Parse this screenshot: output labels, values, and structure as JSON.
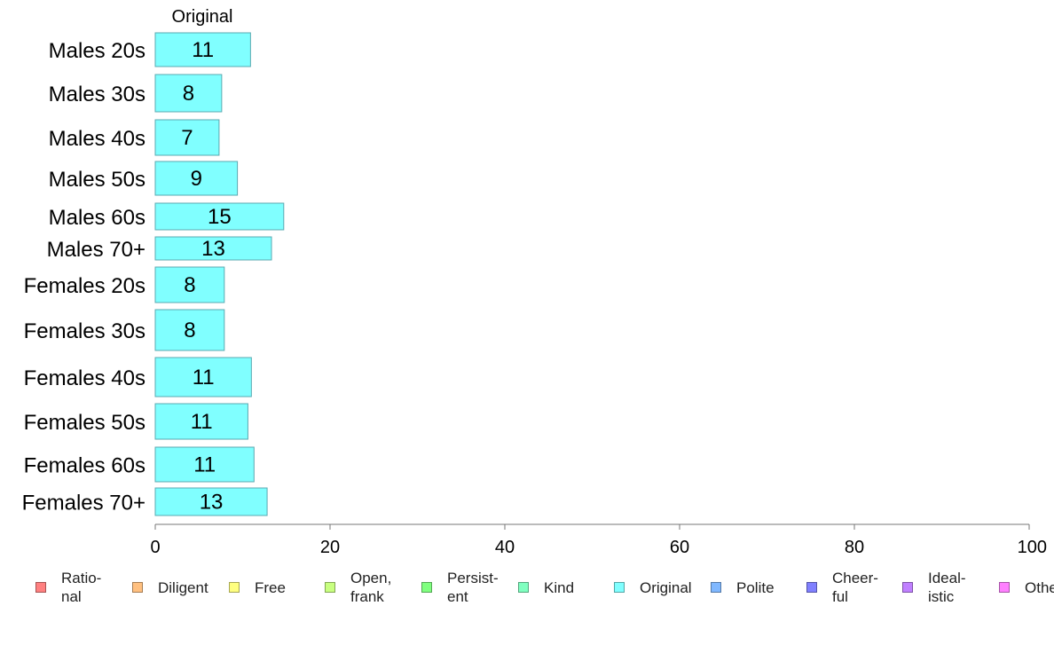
{
  "chart_data": {
    "type": "bar",
    "orientation": "horizontal",
    "panel_title": "Original",
    "categories": [
      "Males 20s",
      "Males 30s",
      "Males 40s",
      "Males 50s",
      "Males 60s",
      "Males 70+",
      "Females 20s",
      "Females 30s",
      "Females 40s",
      "Females 50s",
      "Females 60s",
      "Females 70+"
    ],
    "series": [
      {
        "name": "Original",
        "color": "#80ffff",
        "values": [
          10.9,
          7.6,
          7.3,
          9.4,
          14.7,
          13.3,
          7.9,
          7.9,
          11.0,
          10.6,
          11.3,
          12.8
        ],
        "labels": [
          "11",
          "8",
          "7",
          "9",
          "15",
          "13",
          "8",
          "8",
          "11",
          "11",
          "11",
          "13"
        ]
      }
    ],
    "xlim": [
      0,
      100
    ],
    "xticks": [
      0,
      20,
      40,
      60,
      80,
      100
    ],
    "xtick_labels": [
      "0",
      "20",
      "40",
      "60",
      "80",
      "100"
    ],
    "grid": false,
    "legend_position": "bottom",
    "legend": [
      {
        "label": "Ratio-\nnal",
        "color": "#ff8080"
      },
      {
        "label": "Diligent",
        "color": "#ffc080"
      },
      {
        "label": "Free",
        "color": "#ffff80"
      },
      {
        "label": "Open,\nfrank",
        "color": "#c8ff80"
      },
      {
        "label": "Persist-\nent",
        "color": "#80ff80"
      },
      {
        "label": "Kind",
        "color": "#80ffc0"
      },
      {
        "label": "Original",
        "color": "#80ffff"
      },
      {
        "label": "Polite",
        "color": "#80b8ff"
      },
      {
        "label": "Cheer-\nful",
        "color": "#8080ff"
      },
      {
        "label": "Ideal-\nistic",
        "color": "#c080ff"
      },
      {
        "label": "Other",
        "color": "#ff80ff"
      }
    ]
  }
}
